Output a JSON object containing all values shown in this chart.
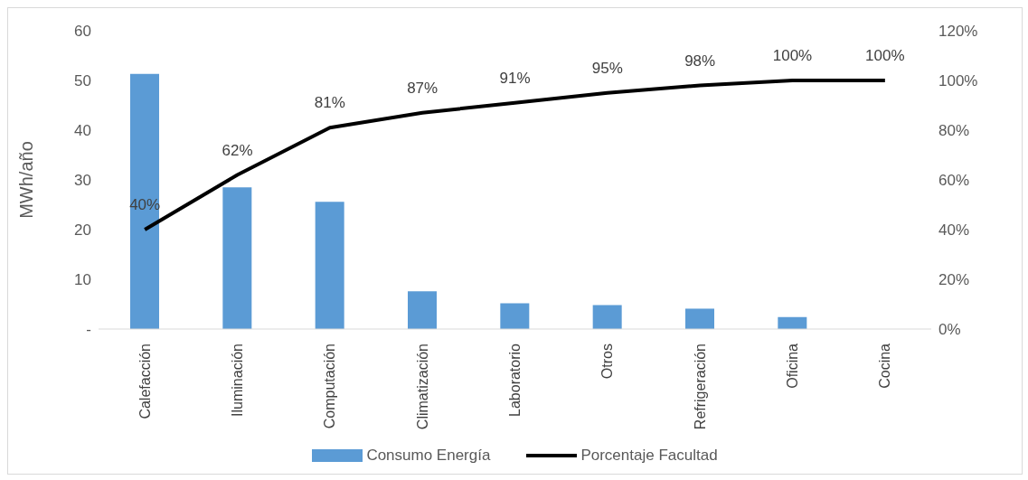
{
  "chart_data": {
    "type": "bar",
    "ylabel": "MWh/año",
    "categories": [
      "Calefacción",
      "Iluminación",
      "Computación",
      "Climatización",
      "Laboratorio",
      "Otros",
      "Refrigeración",
      "Oficina",
      "Cocina"
    ],
    "series": [
      {
        "name": "Consumo Energía",
        "color": "#5b9bd5",
        "values": [
          51.3,
          28.5,
          25.6,
          7.6,
          5.2,
          4.8,
          4.1,
          2.4,
          0
        ]
      },
      {
        "name": "Porcentaje Facultad",
        "type": "line",
        "axis": "y2",
        "color": "#000000",
        "values": [
          40,
          62,
          81,
          87,
          91,
          95,
          98,
          100,
          100
        ],
        "value_labels": [
          "40%",
          "62%",
          "81%",
          "87%",
          "91%",
          "95%",
          "98%",
          "100%",
          "100%"
        ]
      }
    ],
    "ylim": [
      0,
      60
    ],
    "yticks": [
      {
        "value": 0,
        "label": "-"
      },
      10,
      20,
      30,
      40,
      50,
      60
    ],
    "y2lim": [
      0,
      120
    ],
    "y2ticks": [
      {
        "value": 0,
        "label": "0%"
      },
      {
        "value": 20,
        "label": "20%"
      },
      {
        "value": 40,
        "label": "40%"
      },
      {
        "value": 60,
        "label": "60%"
      },
      {
        "value": 80,
        "label": "80%"
      },
      {
        "value": 100,
        "label": "100%"
      },
      {
        "value": 120,
        "label": "120%"
      }
    ],
    "grid": false,
    "legend": "bottom",
    "marker": "none",
    "line_style": "solid"
  }
}
